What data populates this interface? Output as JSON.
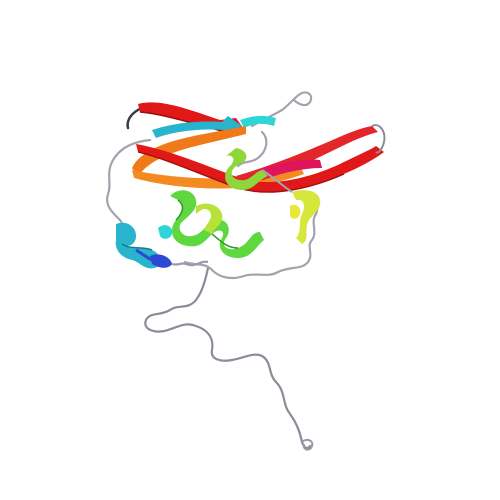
{
  "image": {
    "background": "#ffffff",
    "subject": "protein-ribbon-structure",
    "palette": {
      "coil": "#9a9aa6",
      "coil_dark": "#5d5d6a",
      "blue": "#2c49d6",
      "teal": "#27b4cc",
      "cyan": "#2fd6d6",
      "green": "#63d85b",
      "lime": "#b6e23a",
      "yellow": "#e8e83a",
      "orange": "#f07a1a",
      "red": "#e01818",
      "magenta": "#e0145a"
    }
  }
}
